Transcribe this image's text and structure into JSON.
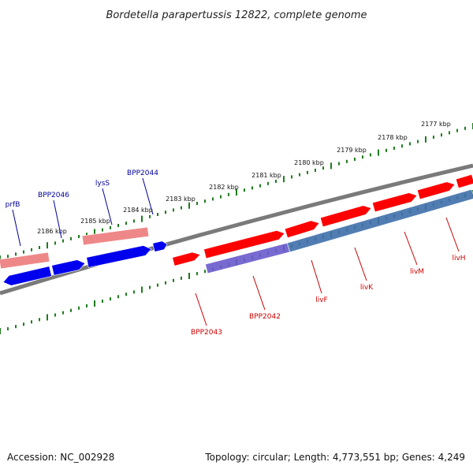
{
  "title": "Bordetella parapertussis 12822, complete genome",
  "footer": {
    "accession": "Accession: NC_002928",
    "summary": "Topology: circular; Length: 4,773,551 bp; Genes: 4,249"
  },
  "colors": {
    "backbone": "#7a7a7a",
    "tick": "#1e7d1e",
    "gene_forward": "#ff0000",
    "gene_reverse": "#0000ee",
    "label_forward": "#cc0000",
    "label_reverse": "#00009a",
    "rna_pink": "#ee8888",
    "operon_blue": "#3f6faa",
    "operon_purple": "#6a5acd"
  },
  "ticks": [
    {
      "label": "2177 kbp"
    },
    {
      "label": "2178 kbp"
    },
    {
      "label": "2179 kbp"
    },
    {
      "label": "2180 kbp"
    },
    {
      "label": "2181 kbp"
    },
    {
      "label": "2182 kbp"
    },
    {
      "label": "2183 kbp"
    },
    {
      "label": "2184 kbp"
    },
    {
      "label": "2185 kbp"
    },
    {
      "label": "2186 kbp"
    }
  ],
  "gene_labels": [
    {
      "text": "prfB",
      "strand": "reverse"
    },
    {
      "text": "BPP2046",
      "strand": "reverse"
    },
    {
      "text": "lysS",
      "strand": "reverse"
    },
    {
      "text": "BPP2044",
      "strand": "reverse"
    },
    {
      "text": "BPP2043",
      "strand": "forward"
    },
    {
      "text": "BPP2042",
      "strand": "forward"
    },
    {
      "text": "livF",
      "strand": "forward"
    },
    {
      "text": "livK",
      "strand": "forward"
    },
    {
      "text": "livM",
      "strand": "forward"
    },
    {
      "text": "livH",
      "strand": "forward"
    }
  ]
}
